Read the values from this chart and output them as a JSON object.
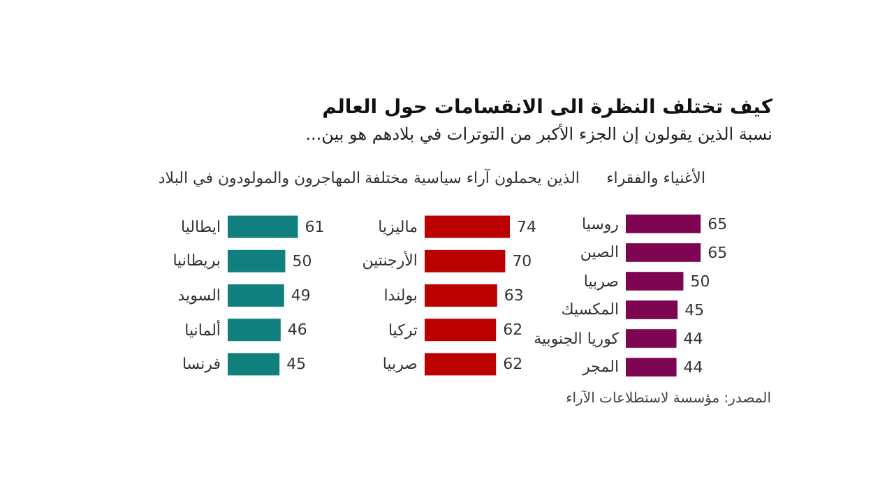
{
  "chart_data": [
    {
      "type": "bar",
      "orientation": "horizontal",
      "title": "الأغنياء والفقراء",
      "categories": [
        "روسيا",
        "الصين",
        "صربيا",
        "المكسيك",
        "كوريا الجنوبية",
        "المجر"
      ],
      "values": [
        65,
        65,
        50,
        45,
        44,
        44
      ],
      "color": "#7d0552",
      "data_labels": true,
      "annotations": [
        "كيف تختلف النظرة الى الانقسامات حول العالم",
        "نسبة الذين يقولون إن الجزء الأكبر من التوترات في بلادهم هو بين...",
        "المصدر: مؤسسة لاستطلاعات الآراء"
      ]
    },
    {
      "type": "bar",
      "orientation": "horizontal",
      "title": "الذين يحملون آراء سياسية مختلفة",
      "categories": [
        "ماليزيا",
        "الأرجنتين",
        "بولندا",
        "تركيا",
        "صربيا"
      ],
      "values": [
        74,
        70,
        63,
        62,
        62
      ],
      "color": "#bb0000",
      "data_labels": true
    },
    {
      "type": "bar",
      "orientation": "horizontal",
      "title": "المهاجرون والمولودون في البلاد",
      "categories": [
        "ايطاليا",
        "بريطانيا",
        "السويد",
        "ألمانيا",
        "فرنسا"
      ],
      "values": [
        61,
        50,
        49,
        46,
        45
      ],
      "color": "#127f7f",
      "data_labels": true
    }
  ]
}
